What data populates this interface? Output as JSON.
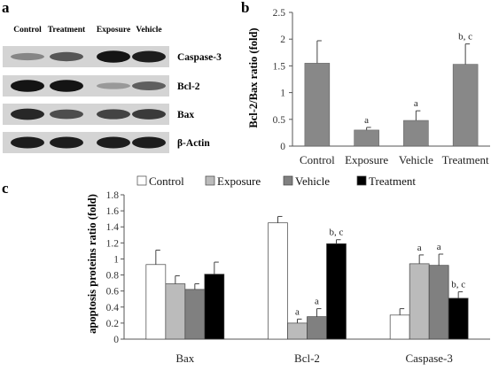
{
  "panels": {
    "a": {
      "letter": "a",
      "columns": [
        "Control",
        "Treatment",
        "Exposure",
        "Vehicle"
      ],
      "rows": [
        "Caspase-3",
        "Bcl-2",
        "Bax",
        "β-Actin"
      ],
      "band_intensity": [
        [
          0.35,
          0.6,
          0.95,
          0.9
        ],
        [
          0.95,
          0.95,
          0.25,
          0.55
        ],
        [
          0.85,
          0.65,
          0.7,
          0.75
        ],
        [
          0.9,
          0.9,
          0.9,
          0.9
        ]
      ]
    },
    "b": {
      "letter": "b"
    },
    "c": {
      "letter": "c"
    }
  },
  "chart_data": [
    {
      "type": "bar",
      "panel": "b",
      "categories": [
        "Control",
        "Exposure",
        "Vehicle",
        "Treatment"
      ],
      "series": [
        {
          "values": [
            1.55,
            0.3,
            0.48,
            1.53
          ],
          "errors": [
            0.42,
            0.05,
            0.18,
            0.38
          ]
        }
      ],
      "annotations": [
        "",
        "a",
        "a",
        "b, c"
      ],
      "ylabel": "Bcl-2/Bax ratio (fold)",
      "ylim": [
        0,
        2.5
      ],
      "yticks": [
        "0",
        "0.5",
        "1",
        "1.5",
        "2",
        "2.5"
      ],
      "bar_color": "#888888",
      "grid": false
    },
    {
      "type": "bar",
      "panel": "c",
      "categories": [
        "Bax",
        "Bcl-2",
        "Caspase-3"
      ],
      "series": [
        {
          "name": "Control",
          "color": "#ffffff",
          "values": [
            0.93,
            1.45,
            0.3
          ],
          "errors": [
            0.18,
            0.08,
            0.08
          ]
        },
        {
          "name": "Exposure",
          "color": "#bbbbbb",
          "values": [
            0.69,
            0.2,
            0.94
          ],
          "errors": [
            0.1,
            0.05,
            0.11
          ]
        },
        {
          "name": "Vehicle",
          "color": "#808080",
          "values": [
            0.62,
            0.28,
            0.92
          ],
          "errors": [
            0.07,
            0.1,
            0.14
          ]
        },
        {
          "name": "Treatment",
          "color": "#000000",
          "values": [
            0.81,
            1.19,
            0.51
          ],
          "errors": [
            0.15,
            0.05,
            0.08
          ]
        }
      ],
      "annotations": [
        [
          "",
          "",
          "",
          ""
        ],
        [
          "",
          "a",
          "a",
          "b, c"
        ],
        [
          "",
          "a",
          "a",
          "b, c"
        ]
      ],
      "ylabel": "apoptosis proteins ratio (fold)",
      "ylim": [
        0,
        1.8
      ],
      "yticks": [
        "0",
        "0.2",
        "0.4",
        "0.6",
        "0.8",
        "1",
        "1.2",
        "1.4",
        "1.6",
        "1.8"
      ],
      "legend_position": "top",
      "grid": false
    }
  ]
}
